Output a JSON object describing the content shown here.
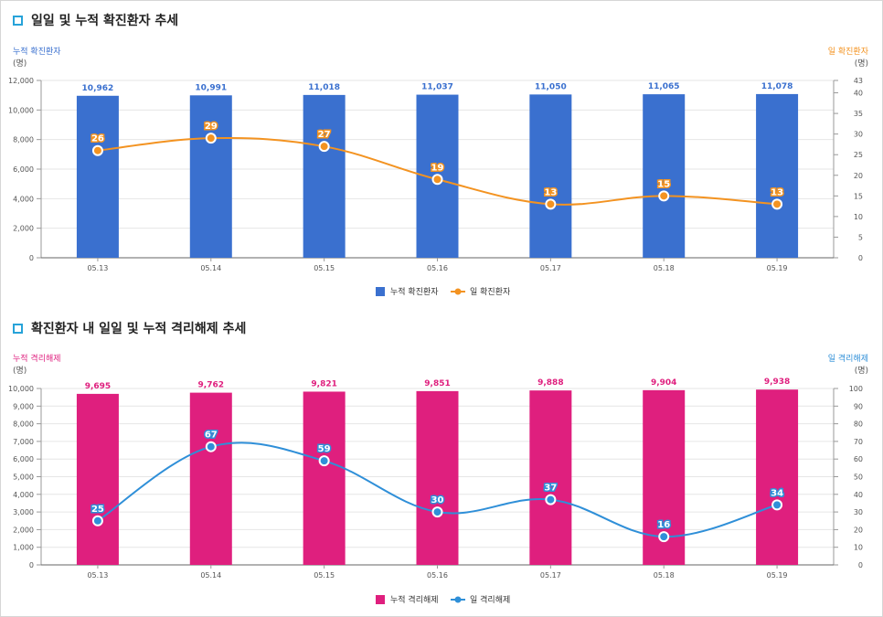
{
  "sections": [
    {
      "title": "일일 및 누적 확진환자 추세",
      "left_axis_title": "누적 확진환자",
      "right_axis_title": "일 확진환자",
      "unit": "(명)",
      "legend": {
        "bar": "누적 확진환자",
        "line": "일 확진환자"
      },
      "colors": {
        "bar": "#3a70cf",
        "bar_label": "#3a70cf",
        "line": "#f39321",
        "left_title": "#3a70cf",
        "right_title": "#f39321"
      }
    },
    {
      "title": "확진환자 내 일일 및 누적 격리해제 추세",
      "left_axis_title": "누적 격리해제",
      "right_axis_title": "일 격리해제",
      "unit": "(명)",
      "legend": {
        "bar": "누적 격리해제",
        "line": "일 격리해제"
      },
      "colors": {
        "bar": "#df1f7e",
        "bar_label": "#df1f7e",
        "line": "#2f8fd8",
        "left_title": "#df1f7e",
        "right_title": "#2f8fd8"
      }
    }
  ],
  "chart_data": [
    {
      "type": "bar",
      "categories": [
        "05.13",
        "05.14",
        "05.15",
        "05.16",
        "05.17",
        "05.18",
        "05.19"
      ],
      "series": [
        {
          "name": "누적 확진환자",
          "type": "bar",
          "axis": "left",
          "values": [
            10962,
            10991,
            11018,
            11037,
            11050,
            11065,
            11078
          ],
          "labels": [
            "10,962",
            "10,991",
            "11,018",
            "11,037",
            "11,050",
            "11,065",
            "11,078"
          ]
        },
        {
          "name": "일 확진환자",
          "type": "line",
          "axis": "right",
          "values": [
            26,
            29,
            27,
            19,
            13,
            15,
            13
          ]
        }
      ],
      "left_axis": {
        "min": 0,
        "max": 12000,
        "ticks": [
          0,
          2000,
          4000,
          6000,
          8000,
          10000,
          12000
        ],
        "tick_labels": [
          "0",
          "2,000",
          "4,000",
          "6,000",
          "8,000",
          "10,000",
          "12,000"
        ]
      },
      "right_axis": {
        "min": 0,
        "max": 43,
        "ticks": [
          0,
          5,
          10,
          15,
          20,
          25,
          30,
          35,
          40,
          43
        ],
        "tick_labels": [
          "0",
          "5",
          "10",
          "15",
          "20",
          "25",
          "30",
          "35",
          "40",
          "43"
        ]
      },
      "grid": true,
      "legend_position": "bottom"
    },
    {
      "type": "bar",
      "categories": [
        "05.13",
        "05.14",
        "05.15",
        "05.16",
        "05.17",
        "05.18",
        "05.19"
      ],
      "series": [
        {
          "name": "누적 격리해제",
          "type": "bar",
          "axis": "left",
          "values": [
            9695,
            9762,
            9821,
            9851,
            9888,
            9904,
            9938
          ],
          "labels": [
            "9,695",
            "9,762",
            "9,821",
            "9,851",
            "9,888",
            "9,904",
            "9,938"
          ]
        },
        {
          "name": "일 격리해제",
          "type": "line",
          "axis": "right",
          "values": [
            25,
            67,
            59,
            30,
            37,
            16,
            34
          ]
        }
      ],
      "left_axis": {
        "min": 0,
        "max": 10000,
        "ticks": [
          0,
          1000,
          2000,
          3000,
          4000,
          5000,
          6000,
          7000,
          8000,
          9000,
          10000
        ],
        "tick_labels": [
          "0",
          "1,000",
          "2,000",
          "3,000",
          "4,000",
          "5,000",
          "6,000",
          "7,000",
          "8,000",
          "9,000",
          "10,000"
        ]
      },
      "right_axis": {
        "min": 0,
        "max": 100,
        "ticks": [
          0,
          10,
          20,
          30,
          40,
          50,
          60,
          70,
          80,
          90,
          100
        ],
        "tick_labels": [
          "0",
          "10",
          "20",
          "30",
          "40",
          "50",
          "60",
          "70",
          "80",
          "90",
          "100"
        ]
      },
      "grid": true,
      "legend_position": "bottom"
    }
  ]
}
